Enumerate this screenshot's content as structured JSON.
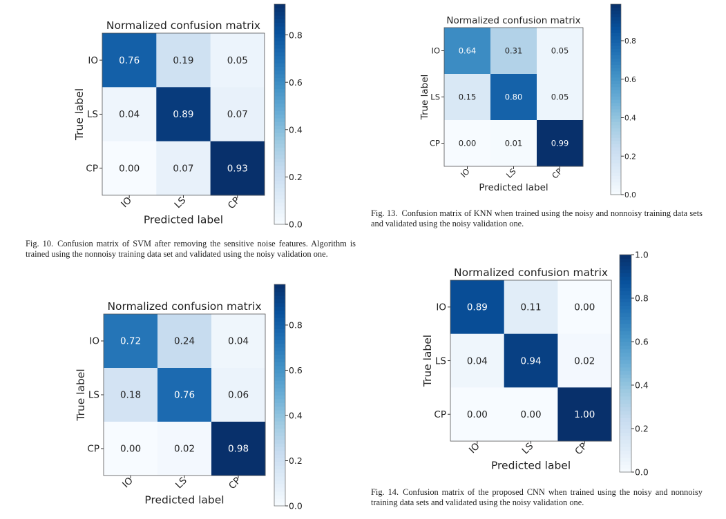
{
  "figures": [
    {
      "caption_label": "Fig. 10.",
      "caption_text": "Confusion matrix of SVM after removing the sensitive noise features. Algorithm is trained using the nonnoisy training data set and validated using the noisy validation one."
    },
    {
      "caption_label": "Fig. 13.",
      "caption_text": "Confusion matrix of KNN when trained using the noisy and nonnoisy training data sets and validated using the noisy validation one."
    },
    {
      "caption_label": "",
      "caption_text": ""
    },
    {
      "caption_label": "Fig. 14.",
      "caption_text": "Confusion matrix of the proposed CNN when trained using the noisy and nonnoisy training data sets and validated using the noisy validation one."
    }
  ],
  "colormap": [
    "#f7fbff",
    "#deebf7",
    "#c6dbef",
    "#9ecae1",
    "#6baed6",
    "#4292c6",
    "#2171b5",
    "#08519c",
    "#08306b"
  ],
  "chart_data": [
    {
      "type": "heatmap",
      "title": "Normalized confusion matrix",
      "xlabel": "Predicted label",
      "ylabel": "True label",
      "x_categories": [
        "IO",
        "LS",
        "CP"
      ],
      "y_categories": [
        "IO",
        "LS",
        "CP"
      ],
      "values": [
        [
          0.76,
          0.19,
          0.05
        ],
        [
          0.04,
          0.89,
          0.07
        ],
        [
          0.0,
          0.07,
          0.93
        ]
      ],
      "colorbar_range": [
        0.0,
        0.93
      ],
      "colorbar_ticks": [
        "0.0",
        "0.2",
        "0.4",
        "0.6",
        "0.8"
      ]
    },
    {
      "type": "heatmap",
      "title": "Normalized confusion matrix",
      "xlabel": "Predicted label",
      "ylabel": "True label",
      "x_categories": [
        "IO",
        "LS",
        "CP"
      ],
      "y_categories": [
        "IO",
        "LS",
        "CP"
      ],
      "values": [
        [
          0.64,
          0.31,
          0.05
        ],
        [
          0.15,
          0.8,
          0.05
        ],
        [
          0.0,
          0.01,
          0.99
        ]
      ],
      "colorbar_range": [
        0.0,
        0.99
      ],
      "colorbar_ticks": [
        "0.0",
        "0.2",
        "0.4",
        "0.6",
        "0.8"
      ]
    },
    {
      "type": "heatmap",
      "title": "Normalized confusion matrix",
      "xlabel": "Predicted label",
      "ylabel": "True label",
      "x_categories": [
        "IO",
        "LS",
        "CP"
      ],
      "y_categories": [
        "IO",
        "LS",
        "CP"
      ],
      "values": [
        [
          0.72,
          0.24,
          0.04
        ],
        [
          0.18,
          0.76,
          0.06
        ],
        [
          0.0,
          0.02,
          0.98
        ]
      ],
      "colorbar_range": [
        0.0,
        0.98
      ],
      "colorbar_ticks": [
        "0.0",
        "0.2",
        "0.4",
        "0.6",
        "0.8"
      ]
    },
    {
      "type": "heatmap",
      "title": "Normalized confusion matrix",
      "xlabel": "Predicted label",
      "ylabel": "True label",
      "x_categories": [
        "IO",
        "LS",
        "CP"
      ],
      "y_categories": [
        "IO",
        "LS",
        "CP"
      ],
      "values": [
        [
          0.89,
          0.11,
          0.0
        ],
        [
          0.04,
          0.94,
          0.02
        ],
        [
          0.0,
          0.0,
          1.0
        ]
      ],
      "colorbar_range": [
        0.0,
        1.0
      ],
      "colorbar_ticks": [
        "0.0",
        "0.2",
        "0.4",
        "0.6",
        "0.8",
        "1.0"
      ]
    }
  ]
}
